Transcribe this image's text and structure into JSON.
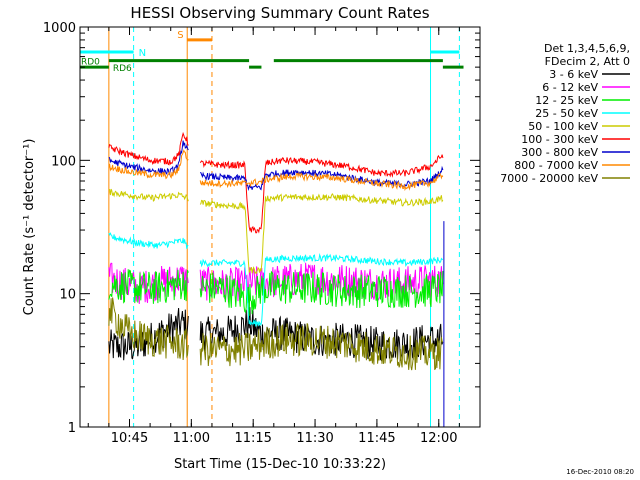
{
  "chart_data": {
    "type": "line",
    "title": "HESSI Observing Summary Count Rates",
    "xlabel": "Start Time (15-Dec-10 10:33:22)",
    "ylabel": "Count Rate (s⁻¹ detector⁻¹)",
    "yscale": "log",
    "ylim": [
      1,
      1000
    ],
    "xlim": [
      "10:33",
      "12:10"
    ],
    "x_ticks": [
      "10:45",
      "11:00",
      "11:15",
      "11:30",
      "11:45",
      "12:00"
    ],
    "y_ticks": [
      "1",
      "10",
      "100",
      "1000"
    ],
    "footer": "16-Dec-2010 08:20",
    "legend": {
      "placement": "right",
      "header": [
        "Det 1,3,4,5,6,9,",
        "FDecim 2, Att 0"
      ],
      "entries": [
        {
          "label": "3 - 6 keV",
          "color": "#000000"
        },
        {
          "label": "6 - 12 keV",
          "color": "#ff00ff"
        },
        {
          "label": "12 - 25 keV",
          "color": "#00ee00"
        },
        {
          "label": "25 - 50 keV",
          "color": "#00ffff"
        },
        {
          "label": "50 - 100 keV",
          "color": "#cccc00"
        },
        {
          "label": "100 - 300 keV",
          "color": "#ff0000"
        },
        {
          "label": "300 - 800 keV",
          "color": "#0000cc"
        },
        {
          "label": "800 - 7000 keV",
          "color": "#ff8800"
        },
        {
          "label": "7000 - 20000 keV",
          "color": "#808000"
        }
      ]
    },
    "flags": [
      {
        "label": "N",
        "color": "#00ffff"
      },
      {
        "label": "S",
        "color": "#ff8800"
      },
      {
        "label": "RD0",
        "color": "#008000"
      },
      {
        "label": "RD6",
        "color": "#008000"
      }
    ],
    "series": [
      {
        "label": "3 - 6 keV",
        "color": "#000000",
        "points": [
          [
            "10:40",
            4
          ],
          [
            "10:47",
            4
          ],
          [
            "10:52",
            5
          ],
          [
            "10:58",
            6
          ],
          [
            "11:02",
            5
          ],
          [
            "11:08",
            5
          ],
          [
            "11:14",
            6
          ],
          [
            "11:17",
            5
          ],
          [
            "11:22",
            5
          ],
          [
            "11:30",
            4.5
          ],
          [
            "11:38",
            4.5
          ],
          [
            "11:45",
            4.2
          ],
          [
            "11:52",
            4.2
          ],
          [
            "11:58",
            4.5
          ],
          [
            "12:01",
            4.5
          ]
        ]
      },
      {
        "label": "6 - 12 keV",
        "color": "#ff00ff",
        "points": [
          [
            "10:40",
            13
          ],
          [
            "10:47",
            11
          ],
          [
            "10:52",
            12
          ],
          [
            "10:58",
            13
          ],
          [
            "11:02",
            12
          ],
          [
            "11:08",
            11.5
          ],
          [
            "11:14",
            12
          ],
          [
            "11:17",
            12
          ],
          [
            "11:22",
            12.5
          ],
          [
            "11:30",
            13
          ],
          [
            "11:38",
            12.5
          ],
          [
            "11:45",
            12
          ],
          [
            "11:52",
            12
          ],
          [
            "11:58",
            12.5
          ],
          [
            "12:01",
            12.5
          ]
        ]
      },
      {
        "label": "12 - 25 keV",
        "color": "#00ee00",
        "points": [
          [
            "10:40",
            12
          ],
          [
            "10:47",
            11
          ],
          [
            "10:52",
            11
          ],
          [
            "10:58",
            12
          ],
          [
            "11:02",
            11
          ],
          [
            "11:08",
            11
          ],
          [
            "11:14",
            9
          ],
          [
            "11:17",
            11
          ],
          [
            "11:22",
            11
          ],
          [
            "11:30",
            11
          ],
          [
            "11:38",
            10.5
          ],
          [
            "11:45",
            10.5
          ],
          [
            "11:52",
            10.5
          ],
          [
            "11:58",
            10.5
          ],
          [
            "12:01",
            11
          ]
        ]
      },
      {
        "label": "25 - 50 keV",
        "color": "#00ffff",
        "points": [
          [
            "10:40",
            27
          ],
          [
            "10:47",
            24
          ],
          [
            "10:52",
            23
          ],
          [
            "10:58",
            25
          ],
          [
            "11:02",
            17
          ],
          [
            "11:08",
            17
          ],
          [
            "11:13",
            17
          ],
          [
            "11:14",
            6
          ],
          [
            "11:17",
            6
          ],
          [
            "11:18",
            18
          ],
          [
            "11:25",
            18.5
          ],
          [
            "11:35",
            18.5
          ],
          [
            "11:45",
            17.5
          ],
          [
            "11:52",
            17
          ],
          [
            "11:58",
            17.5
          ],
          [
            "12:01",
            18
          ]
        ]
      },
      {
        "label": "50 - 100 keV",
        "color": "#cccc00",
        "points": [
          [
            "10:40",
            58
          ],
          [
            "10:45",
            55
          ],
          [
            "10:50",
            52
          ],
          [
            "10:57",
            55
          ],
          [
            "11:02",
            48
          ],
          [
            "11:08",
            46
          ],
          [
            "11:13",
            45
          ],
          [
            "11:14",
            15
          ],
          [
            "11:17",
            15
          ],
          [
            "11:18",
            52
          ],
          [
            "11:25",
            53
          ],
          [
            "11:35",
            53
          ],
          [
            "11:45",
            50
          ],
          [
            "11:52",
            48
          ],
          [
            "11:58",
            49
          ],
          [
            "12:01",
            52
          ]
        ]
      },
      {
        "label": "100 - 300 keV",
        "color": "#ff0000",
        "points": [
          [
            "10:40",
            125
          ],
          [
            "10:45",
            110
          ],
          [
            "10:50",
            100
          ],
          [
            "10:55",
            98
          ],
          [
            "10:57",
            110
          ],
          [
            "10:58",
            160
          ],
          [
            "11:02",
            95
          ],
          [
            "11:08",
            92
          ],
          [
            "11:13",
            92
          ],
          [
            "11:14",
            30
          ],
          [
            "11:17",
            30
          ],
          [
            "11:18",
            95
          ],
          [
            "11:22",
            100
          ],
          [
            "11:30",
            97
          ],
          [
            "11:38",
            90
          ],
          [
            "11:45",
            80
          ],
          [
            "11:52",
            80
          ],
          [
            "11:58",
            90
          ],
          [
            "12:01",
            110
          ]
        ]
      },
      {
        "label": "300 - 800 keV",
        "color": "#0000cc",
        "points": [
          [
            "10:40",
            100
          ],
          [
            "10:45",
            90
          ],
          [
            "10:50",
            84
          ],
          [
            "10:55",
            82
          ],
          [
            "10:57",
            92
          ],
          [
            "10:58",
            140
          ],
          [
            "11:02",
            77
          ],
          [
            "11:08",
            74
          ],
          [
            "11:13",
            73
          ],
          [
            "11:14",
            62
          ],
          [
            "11:17",
            63
          ],
          [
            "11:18",
            78
          ],
          [
            "11:25",
            82
          ],
          [
            "11:35",
            78
          ],
          [
            "11:45",
            68
          ],
          [
            "11:52",
            66
          ],
          [
            "11:58",
            70
          ],
          [
            "12:01",
            85
          ]
        ]
      },
      {
        "label": "800 - 7000 keV",
        "color": "#ff8800",
        "points": [
          [
            "10:40",
            90
          ],
          [
            "10:45",
            82
          ],
          [
            "10:50",
            78
          ],
          [
            "10:55",
            77
          ],
          [
            "10:57",
            85
          ],
          [
            "10:58",
            120
          ],
          [
            "11:02",
            68
          ],
          [
            "11:08",
            67
          ],
          [
            "11:13",
            67
          ],
          [
            "11:14",
            68
          ],
          [
            "11:17",
            69
          ],
          [
            "11:18",
            72
          ],
          [
            "11:25",
            76
          ],
          [
            "11:35",
            74
          ],
          [
            "11:45",
            67
          ],
          [
            "11:52",
            64
          ],
          [
            "11:58",
            68
          ],
          [
            "12:01",
            78
          ]
        ]
      },
      {
        "label": "7000 - 20000 keV",
        "color": "#808000",
        "points": [
          [
            "10:40",
            7.5
          ],
          [
            "10:45",
            5
          ],
          [
            "10:50",
            4.5
          ],
          [
            "10:57",
            4.2
          ],
          [
            "11:02",
            3.8
          ],
          [
            "11:08",
            3.8
          ],
          [
            "11:13",
            3.8
          ],
          [
            "11:17",
            4.2
          ],
          [
            "11:22",
            4.5
          ],
          [
            "11:30",
            4.5
          ],
          [
            "11:38",
            4.2
          ],
          [
            "11:45",
            3.8
          ],
          [
            "11:52",
            3.6
          ],
          [
            "11:58",
            3.6
          ],
          [
            "12:01",
            3.6
          ]
        ]
      }
    ]
  }
}
